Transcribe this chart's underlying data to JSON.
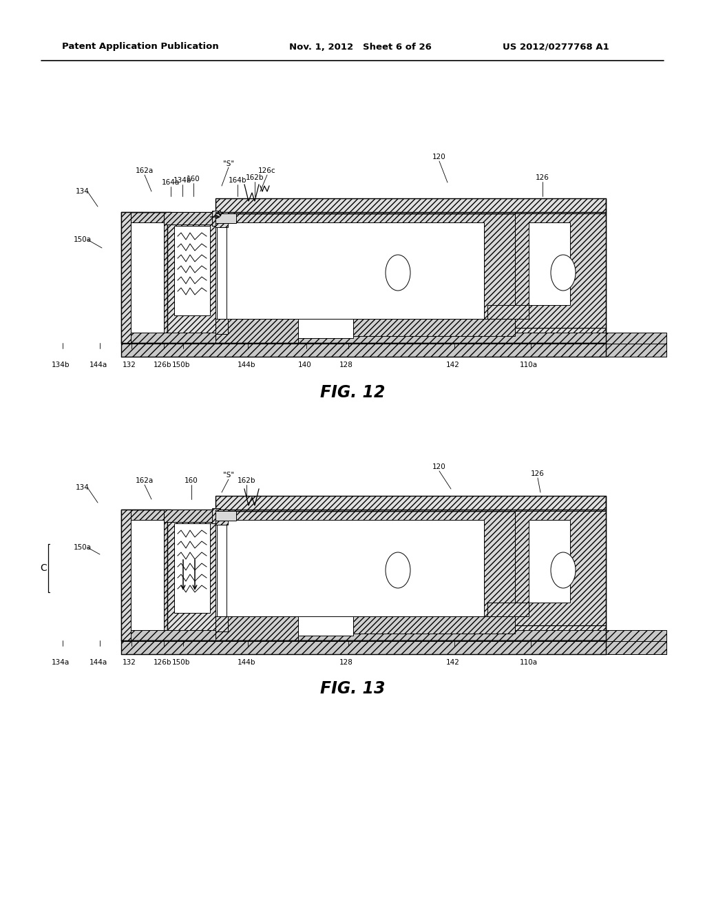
{
  "bg_color": "#ffffff",
  "header_left": "Patent Application Publication",
  "header_mid": "Nov. 1, 2012   Sheet 6 of 26",
  "header_right": "US 2012/0277768 A1",
  "fig12_caption": "FIG. 12",
  "fig13_caption": "FIG. 13",
  "line_color": "#000000",
  "hatch_color": "#000000",
  "hatch_bg": "#ffffff",
  "gray_bg": "#d0d0d0"
}
